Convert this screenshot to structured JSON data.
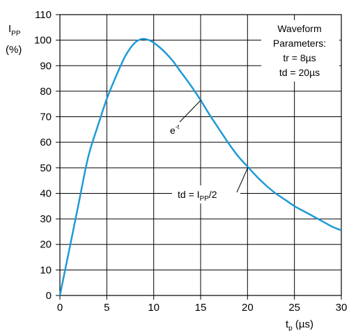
{
  "chart_data": {
    "type": "line",
    "title": "",
    "xlabel": {
      "main": "t",
      "sub": "p",
      "unit": " (µs)"
    },
    "ylabel": {
      "main": "I",
      "sub": "PP",
      "unit": "(%)"
    },
    "xlim": [
      0,
      30
    ],
    "ylim": [
      0,
      110
    ],
    "x_ticks": [
      0,
      5,
      10,
      15,
      20,
      25,
      30
    ],
    "y_ticks": [
      0,
      10,
      20,
      30,
      40,
      50,
      60,
      70,
      80,
      90,
      100,
      110
    ],
    "grid": true,
    "line_color": "#1e9ad6",
    "series": [
      {
        "x": [
          0,
          1,
          2,
          3,
          4,
          5,
          6,
          7,
          8,
          8.8,
          9.5,
          10,
          11,
          12,
          13,
          14,
          15,
          16,
          17,
          18,
          19,
          20,
          21,
          22,
          23,
          24,
          25,
          26,
          27,
          28,
          29,
          30
        ],
        "y": [
          0,
          18,
          36,
          54,
          66,
          77,
          86,
          94,
          99,
          100.5,
          100,
          99,
          96,
          92,
          87,
          82,
          76.5,
          70.5,
          65,
          59.5,
          54.5,
          50.5,
          46.5,
          43,
          40,
          37.5,
          35,
          33,
          31,
          29,
          27,
          25.5
        ]
      }
    ]
  },
  "legend_box": {
    "lines": [
      "Waveform",
      "Parameters:",
      "tr = 8µs",
      "td = 20µs"
    ]
  },
  "annotations": {
    "decay": {
      "text": "e",
      "sup": "-t"
    },
    "td": {
      "prefix": "td = I",
      "sub": "PP",
      "suffix": "/2"
    }
  }
}
